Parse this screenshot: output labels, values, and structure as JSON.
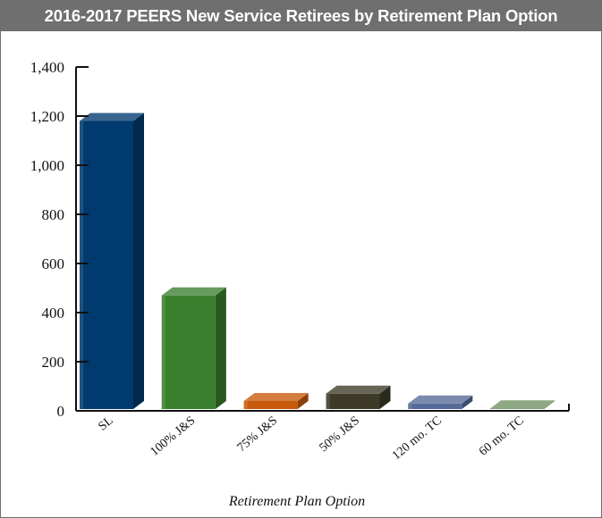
{
  "chart_data": {
    "type": "bar",
    "title": "2016-2017 PEERS New Service Retirees by Retirement Plan Option",
    "xlabel": "Retirement Plan Option",
    "ylabel": "",
    "categories": [
      "SL",
      "100% J&S",
      "75% J&S",
      "50% J&S",
      "120 mo. TC",
      "60 mo. TC"
    ],
    "values": [
      1180,
      470,
      40,
      70,
      30,
      10
    ],
    "ylim": [
      0,
      1400
    ],
    "yticks": [
      0,
      200,
      400,
      600,
      800,
      1000,
      1200,
      1400
    ],
    "ytick_labels": [
      "0",
      "200",
      "400",
      "600",
      "800",
      "1,000",
      "1,200",
      "1,400"
    ],
    "colors": [
      "#003a6e",
      "#3a7f2d",
      "#c85a0d",
      "#3d3a28",
      "#566a9a",
      "#6e8f61"
    ],
    "grid": false,
    "legend": "none",
    "style": "3d-bars"
  }
}
